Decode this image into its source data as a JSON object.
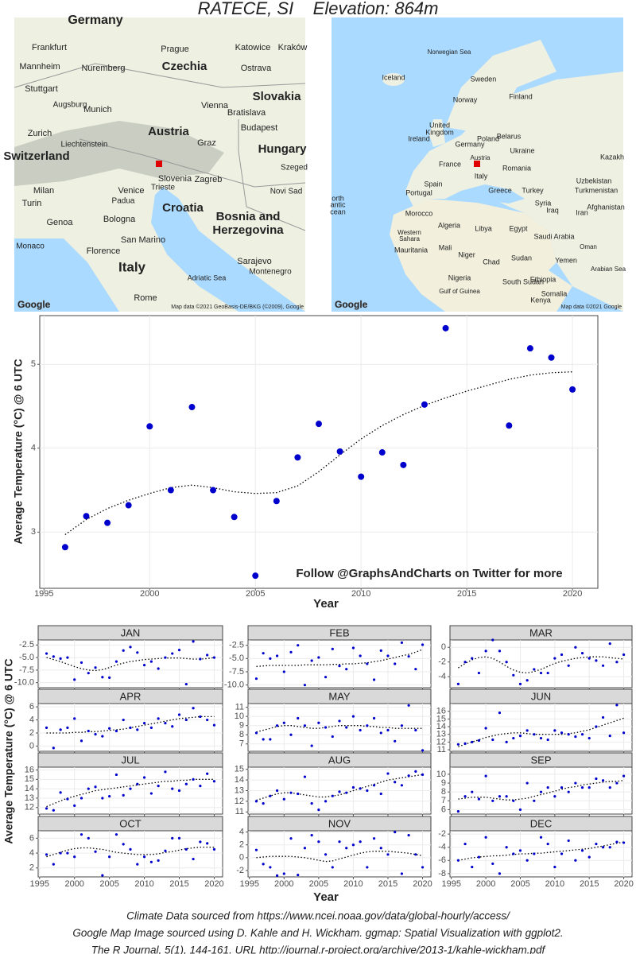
{
  "title": "RATECE, SI    Elevation: 864m",
  "maps": {
    "left": {
      "labels": [
        "Germany",
        "Frankfurt",
        "Prague",
        "Czechia",
        "Katowice",
        "Kraków",
        "Nuremberg",
        "Mannheim",
        "Ostrava",
        "Stuttgart",
        "Augsburg",
        "Munich",
        "Slovakia",
        "Vienna",
        "Bratislava",
        "Austria",
        "Budapest",
        "Graz",
        "Zurich",
        "Liechtenstein",
        "Switzerland",
        "Hungary",
        "Slovenia",
        "Zagreb",
        "Szeged",
        "Milan",
        "Venice",
        "Trieste",
        "Turin",
        "Padua",
        "Croatia",
        "Novi Sad",
        "Genoa",
        "Bologna",
        "Bosnia and",
        "Herzegovina",
        "Monaco",
        "San Marino",
        "Florence",
        "Sarajevo",
        "Italy",
        "Montenegro",
        "Rome",
        "Adriatic Sea"
      ],
      "logo": "Google",
      "credit": "Map data ©2021 GeoBasis-DE/BKG (©2009), Google"
    },
    "right": {
      "labels": [
        "Norwegian Sea",
        "Iceland",
        "Sweden",
        "Norway",
        "Finland",
        "United",
        "Kingdom",
        "Ireland",
        "Poland",
        "Belarus",
        "Germany",
        "Ukraine",
        "France",
        "Austria",
        "Romania",
        "Italy",
        "Spain",
        "Portugal",
        "Greece",
        "Turkey",
        "Kazakh",
        "Uzbekistan",
        "Turkmenistan",
        "Syria",
        "Iraq",
        "Iran",
        "Afghanistan",
        "Morocco",
        "Algeria",
        "Libya",
        "Egypt",
        "Saudi Arabia",
        "Western",
        "Sahara",
        "Mauritania",
        "Mali",
        "Niger",
        "Chad",
        "Sudan",
        "Yemen",
        "Oman",
        "Arabian Sea",
        "Nigeria",
        "Ethiopia",
        "South Sudan",
        "Gulf of Guinea",
        "Somalia",
        "Kenya",
        "orth",
        "antic",
        "cean"
      ],
      "logo": "Google",
      "credit": "Map data ©2021 Google"
    }
  },
  "chart_data": [
    {
      "type": "scatter",
      "annotation": "Follow @GraphsAndCharts on Twitter for more",
      "x_label": "Year",
      "y_label": "Average Temperature (°C) @ 6 UTC",
      "x": [
        1996,
        1997,
        1998,
        1999,
        2000,
        2001,
        2002,
        2003,
        2004,
        2005,
        2006,
        2007,
        2008,
        2009,
        2010,
        2011,
        2012,
        2013,
        2014,
        2015,
        2016,
        2017,
        2018,
        2019,
        2020
      ],
      "values": [
        2.82,
        3.19,
        3.11,
        3.32,
        4.26,
        3.5,
        4.49,
        3.5,
        3.18,
        2.48,
        3.37,
        3.89,
        4.29,
        3.96,
        3.66,
        3.95,
        3.8,
        4.52,
        5.43,
        null,
        null,
        4.27,
        5.19,
        5.08,
        4.7
      ],
      "trend": [
        2.97,
        3.15,
        3.28,
        3.38,
        3.46,
        3.53,
        3.56,
        3.53,
        3.48,
        3.46,
        3.47,
        3.55,
        3.72,
        3.92,
        4.11,
        4.27,
        4.4,
        4.51,
        4.6,
        4.68,
        4.75,
        4.82,
        4.87,
        4.9,
        4.91
      ],
      "color": "#0000cd",
      "xlim": [
        1994.8,
        2021.2
      ],
      "xticks": [
        1995,
        2000,
        2005,
        2010,
        2015,
        2020
      ],
      "ylim": [
        2.33,
        5.58
      ],
      "yticks": [
        3,
        4,
        5
      ],
      "grid": true
    },
    {
      "type": "small_multiples",
      "x_label": "Year",
      "y_label": "Average Temperature (°C) @ 6 UTC",
      "x": [
        1996,
        1997,
        1998,
        1999,
        2000,
        2001,
        2002,
        2003,
        2004,
        2005,
        2006,
        2007,
        2008,
        2009,
        2010,
        2011,
        2012,
        2013,
        2014,
        2015,
        2016,
        2017,
        2018,
        2019,
        2020
      ],
      "xlim": [
        1994.8,
        2021.2
      ],
      "xticks": [
        1995,
        2000,
        2005,
        2010,
        2015,
        2020
      ],
      "color": "#0000cd",
      "grid": true,
      "panels": [
        {
          "title": "JAN",
          "ylim": [
            -11,
            -1.5
          ],
          "yticks": [
            -2.5,
            {
              "value": -5,
              "label": "-5.0"
            },
            -7.5,
            {
              "value": -10,
              "label": "-10.0"
            }
          ],
          "values": [
            -4.2,
            -4.8,
            -5.2,
            -5.0,
            -9.4,
            -6.0,
            -8.1,
            -7.0,
            -8.9,
            -9.0,
            -5.8,
            -3.6,
            -2.9,
            -4.0,
            -6.5,
            -5.8,
            -7.2,
            -5.0,
            -4.2,
            -3.5,
            -10.3,
            -1.8,
            -5.3,
            -4.5,
            -5.0
          ],
          "trend": [
            -5.0,
            -5.4,
            -5.8,
            -6.3,
            -6.8,
            -7.2,
            -7.5,
            -7.6,
            -7.4,
            -7.0,
            -6.5,
            -6.1,
            -5.8,
            -5.6,
            -5.4,
            -5.3,
            -5.2,
            -5.1,
            -5.1,
            -5.1,
            -5.2,
            -5.3,
            -5.3,
            -5.2,
            -5.0
          ]
        },
        {
          "title": "FEB",
          "ylim": [
            -10.5,
            -1.5
          ],
          "yticks": [
            -2.5,
            {
              "value": -5,
              "label": "-5.0"
            },
            -7.5,
            {
              "value": -10,
              "label": "-10.0"
            }
          ],
          "values": [
            -8.8,
            -4.0,
            -5.0,
            -4.5,
            -7.5,
            -3.8,
            -2.5,
            -10.0,
            -5.4,
            -4.8,
            -8.5,
            -3.2,
            -6.4,
            -7.0,
            -3.0,
            -4.5,
            -6.0,
            -9.0,
            -3.5,
            -4.5,
            -6.0,
            -2.0,
            -4.6,
            -7.0,
            -2.4
          ],
          "trend": [
            -6.5,
            -6.4,
            -6.3,
            -6.3,
            -6.3,
            -6.3,
            -6.3,
            -6.2,
            -6.2,
            -6.2,
            -6.2,
            -6.1,
            -6.1,
            -6.0,
            -6.0,
            -5.9,
            -5.8,
            -5.6,
            -5.4,
            -5.1,
            -4.8,
            -4.5,
            -4.2,
            -3.8,
            -3.3
          ]
        },
        {
          "title": "MAR",
          "ylim": [
            -5.5,
            1
          ],
          "yticks": [
            0,
            -2,
            -4
          ],
          "values": [
            -5.0,
            -2.0,
            -1.5,
            -3.5,
            -0.5,
            1.0,
            -0.5,
            -2.0,
            -3.8,
            -5.0,
            -4.5,
            -3.0,
            -3.5,
            -3.5,
            -1.5,
            -1.0,
            -2.5,
            0.0,
            -0.8,
            -1.5,
            -1.8,
            -2.5,
            0.5,
            -2.0,
            -1.0
          ],
          "trend": [
            -2.8,
            -2.2,
            -1.7,
            -1.4,
            -1.3,
            -1.5,
            -2.0,
            -2.6,
            -3.1,
            -3.4,
            -3.5,
            -3.3,
            -3.0,
            -2.6,
            -2.2,
            -1.9,
            -1.7,
            -1.5,
            -1.4,
            -1.3,
            -1.3,
            -1.3,
            -1.4,
            -1.5,
            -1.6
          ]
        },
        {
          "title": "APR",
          "ylim": [
            -0.8,
            6.5
          ],
          "yticks": [
            0,
            2,
            4,
            6
          ],
          "values": [
            2.8,
            -0.3,
            2.5,
            2.8,
            4.2,
            0.8,
            2.3,
            1.8,
            1.5,
            2.7,
            2.3,
            4.0,
            2.8,
            2.5,
            3.5,
            2.8,
            4.2,
            3.5,
            3.0,
            4.8,
            4.0,
            5.8,
            4.5,
            4.0,
            3.2
          ],
          "trend": [
            2.0,
            2.0,
            2.0,
            2.0,
            2.1,
            2.1,
            2.2,
            2.2,
            2.3,
            2.4,
            2.5,
            2.6,
            2.8,
            3.0,
            3.2,
            3.4,
            3.6,
            3.8,
            4.0,
            4.2,
            4.3,
            4.4,
            4.5,
            4.5,
            4.5
          ]
        },
        {
          "title": "MAY",
          "ylim": [
            6.2,
            11.4
          ],
          "yticks": [
            7,
            8,
            9,
            10,
            11
          ],
          "values": [
            8.2,
            7.5,
            7.5,
            9.0,
            9.3,
            8.0,
            9.8,
            9.0,
            6.8,
            9.3,
            8.8,
            7.8,
            9.5,
            8.8,
            10.0,
            8.5,
            9.0,
            9.8,
            8.2,
            8.5,
            7.3,
            9.0,
            11.2,
            8.5,
            6.3
          ],
          "trend": [
            8.3,
            8.5,
            8.7,
            8.9,
            9.0,
            9.0,
            8.9,
            8.8,
            8.7,
            8.7,
            8.8,
            8.9,
            9.0,
            9.0,
            9.0,
            9.0,
            8.9,
            8.9,
            8.8,
            8.8,
            8.7,
            8.7,
            8.7,
            8.7,
            8.7
          ]
        },
        {
          "title": "JUN",
          "ylim": [
            10.8,
            17
          ],
          "yticks": [
            11,
            12,
            13,
            14,
            15,
            16
          ],
          "values": [
            11.7,
            11.8,
            12.0,
            12.2,
            13.8,
            12.3,
            15.8,
            12.0,
            12.5,
            12.8,
            13.5,
            13.0,
            12.5,
            12.3,
            13.5,
            13.2,
            13.0,
            12.7,
            13.0,
            12.5,
            14.0,
            15.2,
            12.8,
            16.8,
            13.2
          ],
          "trend": [
            11.4,
            11.7,
            12.0,
            12.3,
            12.6,
            12.8,
            13.0,
            13.1,
            13.2,
            13.2,
            13.1,
            13.0,
            13.0,
            13.0,
            13.0,
            13.0,
            13.1,
            13.2,
            13.4,
            13.6,
            13.9,
            14.2,
            14.5,
            14.8,
            15.1
          ]
        },
        {
          "title": "JUL",
          "ylim": [
            11.3,
            16.3
          ],
          "yticks": [
            12,
            13,
            14,
            15,
            16
          ],
          "values": [
            11.9,
            11.7,
            13.6,
            12.9,
            12.2,
            13.0,
            14.0,
            14.2,
            13.0,
            13.2,
            15.5,
            13.3,
            14.0,
            14.5,
            15.2,
            13.5,
            14.3,
            15.8,
            14.0,
            13.8,
            14.5,
            15.0,
            14.3,
            15.6,
            14.8
          ],
          "trend": [
            12.1,
            12.4,
            12.7,
            13.0,
            13.2,
            13.4,
            13.6,
            13.8,
            13.9,
            14.0,
            14.1,
            14.2,
            14.3,
            14.4,
            14.5,
            14.6,
            14.7,
            14.8,
            14.8,
            14.9,
            14.9,
            15.0,
            15.0,
            15.0,
            15.0
          ]
        },
        {
          "title": "AUG",
          "ylim": [
            10.8,
            15.2
          ],
          "yticks": [
            11,
            12,
            13,
            14,
            15
          ],
          "values": [
            12.0,
            11.8,
            12.5,
            13.0,
            12.2,
            12.8,
            12.7,
            14.3,
            11.8,
            11.2,
            12.0,
            12.5,
            12.9,
            12.8,
            13.3,
            13.2,
            13.0,
            13.5,
            12.7,
            14.6,
            13.8,
            13.5,
            14.4,
            14.8,
            14.5
          ],
          "trend": [
            12.1,
            12.3,
            12.5,
            12.7,
            12.8,
            12.8,
            12.7,
            12.6,
            12.5,
            12.4,
            12.4,
            12.5,
            12.6,
            12.8,
            13.0,
            13.2,
            13.4,
            13.6,
            13.8,
            14.0,
            14.1,
            14.2,
            14.3,
            14.4,
            14.5
          ]
        },
        {
          "title": "SEP",
          "ylim": [
            5.5,
            10.8
          ],
          "yticks": [
            6,
            7,
            8,
            9,
            10
          ],
          "values": [
            5.8,
            7.5,
            8.0,
            7.2,
            9.8,
            7.0,
            7.5,
            7.5,
            7.0,
            6.0,
            9.0,
            7.0,
            8.0,
            8.5,
            7.5,
            8.5,
            8.0,
            9.0,
            8.5,
            8.5,
            9.5,
            9.3,
            8.5,
            9.0,
            9.8
          ],
          "trend": [
            7.2,
            7.3,
            7.4,
            7.4,
            7.4,
            7.3,
            7.2,
            7.1,
            7.1,
            7.2,
            7.3,
            7.5,
            7.7,
            7.9,
            8.1,
            8.3,
            8.5,
            8.6,
            8.8,
            8.9,
            9.0,
            9.1,
            9.2,
            9.2,
            9.3
          ]
        },
        {
          "title": "OCT",
          "ylim": [
            0.8,
            7
          ],
          "yticks": [
            2,
            4,
            6
          ],
          "values": [
            3.8,
            2.5,
            4.0,
            4.0,
            3.5,
            6.5,
            6.0,
            4.2,
            1.0,
            3.5,
            6.5,
            5.2,
            4.5,
            2.5,
            3.5,
            2.8,
            3.0,
            4.3,
            6.0,
            6.0,
            4.5,
            3.2,
            5.5,
            5.3,
            4.5
          ],
          "trend": [
            3.5,
            3.8,
            4.1,
            4.4,
            4.6,
            4.7,
            4.7,
            4.6,
            4.5,
            4.3,
            4.1,
            4.0,
            3.9,
            3.8,
            3.8,
            3.8,
            3.9,
            4.1,
            4.2,
            4.4,
            4.6,
            4.7,
            4.8,
            4.8,
            4.8
          ]
        },
        {
          "title": "NOV",
          "ylim": [
            -3,
            4.2
          ],
          "yticks": [
            -2,
            0,
            2,
            4
          ],
          "values": [
            1.2,
            -1.0,
            -1.5,
            -2.8,
            -2.5,
            3.0,
            -2.7,
            1.5,
            3.5,
            2.5,
            0.5,
            -1.5,
            2.5,
            1.5,
            2.0,
            2.5,
            -1.5,
            3.0,
            1.5,
            0.5,
            4.0,
            -2.5,
            3.5,
            0.5,
            -1.5
          ],
          "trend": [
            0.0,
            0.1,
            0.2,
            0.2,
            0.2,
            0.2,
            0.1,
            0.0,
            -0.2,
            -0.4,
            -0.6,
            -0.5,
            -0.2,
            0.1,
            0.4,
            0.7,
            0.9,
            1.0,
            1.0,
            1.0,
            0.9,
            0.8,
            0.7,
            0.5,
            0.3
          ]
        },
        {
          "title": "DEC",
          "ylim": [
            -8.5,
            -1.5
          ],
          "yticks": [
            -2,
            -4,
            -6,
            -8
          ],
          "values": [
            -6.0,
            -3.5,
            -7.0,
            -5.5,
            -2.5,
            -6.5,
            -8.0,
            -4.0,
            -5.0,
            -4.5,
            -6.0,
            -5.0,
            -2.5,
            -3.5,
            -7.0,
            -5.0,
            -3.0,
            -6.0,
            -4.5,
            -5.5,
            -3.5,
            -4.0,
            -4.0,
            -3.2,
            -3.3
          ],
          "trend": [
            -6.0,
            -5.8,
            -5.6,
            -5.5,
            -5.4,
            -5.3,
            -5.3,
            -5.2,
            -5.1,
            -5.0,
            -5.0,
            -4.9,
            -4.9,
            -4.8,
            -4.7,
            -4.6,
            -4.5,
            -4.4,
            -4.3,
            -4.2,
            -4.0,
            -3.8,
            -3.6,
            -3.4,
            -3.2
          ]
        }
      ]
    }
  ],
  "footer": [
    "Climate Data sourced from https://www.ncei.noaa.gov/data/global-hourly/access/",
    "Google Map Image sourced using D. Kahle and H. Wickham. ggmap: Spatial Visualization with ggplot2.",
    "The R Journal, 5(1), 144-161. URL http://journal.r-project.org/archive/2013-1/kahle-wickham.pdf"
  ]
}
